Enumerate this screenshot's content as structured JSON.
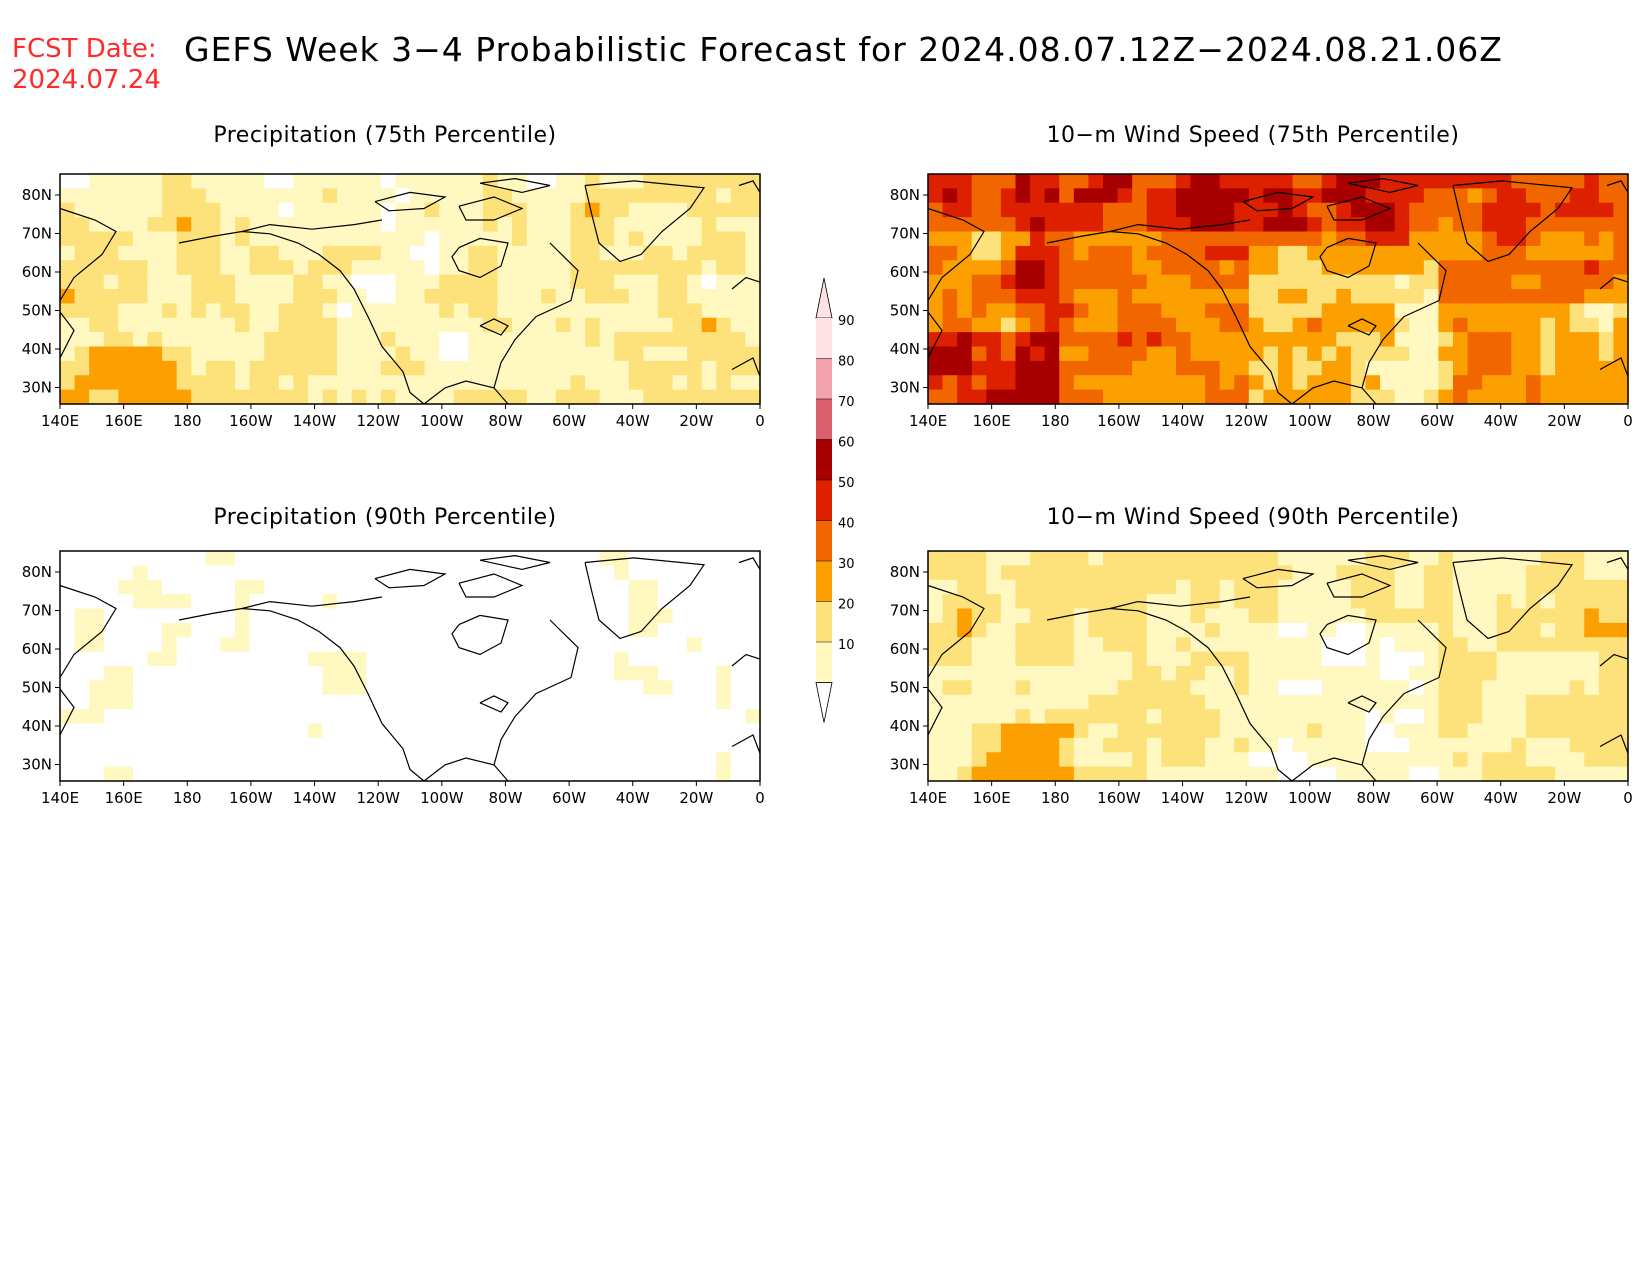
{
  "header": {
    "fcst_label": "FCST Date:",
    "fcst_date": "2024.07.24",
    "title": "GEFS Week 3−4 Probabilistic Forecast for 2024.08.07.12Z−2024.08.21.06Z"
  },
  "panels": [
    {
      "title": "Precipitation (75th Percentile)",
      "scheme": "precip75"
    },
    {
      "title": "10−m Wind Speed (75th Percentile)",
      "scheme": "wind75"
    },
    {
      "title": "Precipitation (90th Percentile)",
      "scheme": "precip90"
    },
    {
      "title": "10−m Wind Speed (90th Percentile)",
      "scheme": "wind90"
    }
  ],
  "axes": {
    "lon_labels": [
      "140E",
      "160E",
      "180",
      "160W",
      "140W",
      "120W",
      "100W",
      "80W",
      "60W",
      "40W",
      "20W",
      "0"
    ],
    "lat_labels": [
      "80N",
      "70N",
      "60N",
      "50N",
      "40N",
      "30N"
    ]
  },
  "colorbar": {
    "levels": [
      "90",
      "80",
      "70",
      "60",
      "50",
      "40",
      "30",
      "20",
      "10"
    ],
    "colors": [
      "#fde3e6",
      "#f2a3ad",
      "#d9606c",
      "#a80000",
      "#dd2000",
      "#f26600",
      "#fba000",
      "#fde27c",
      "#fff8c0"
    ]
  },
  "palette": {
    "white": "#ffffff",
    "pale_yellow": "#fff8c0",
    "yellow": "#fde27c",
    "orange": "#fba000",
    "dark_orange": "#f26600",
    "red": "#dd2000",
    "dark_red": "#a80000",
    "coast": "#000000",
    "title_red": "#ff2a2a"
  }
}
